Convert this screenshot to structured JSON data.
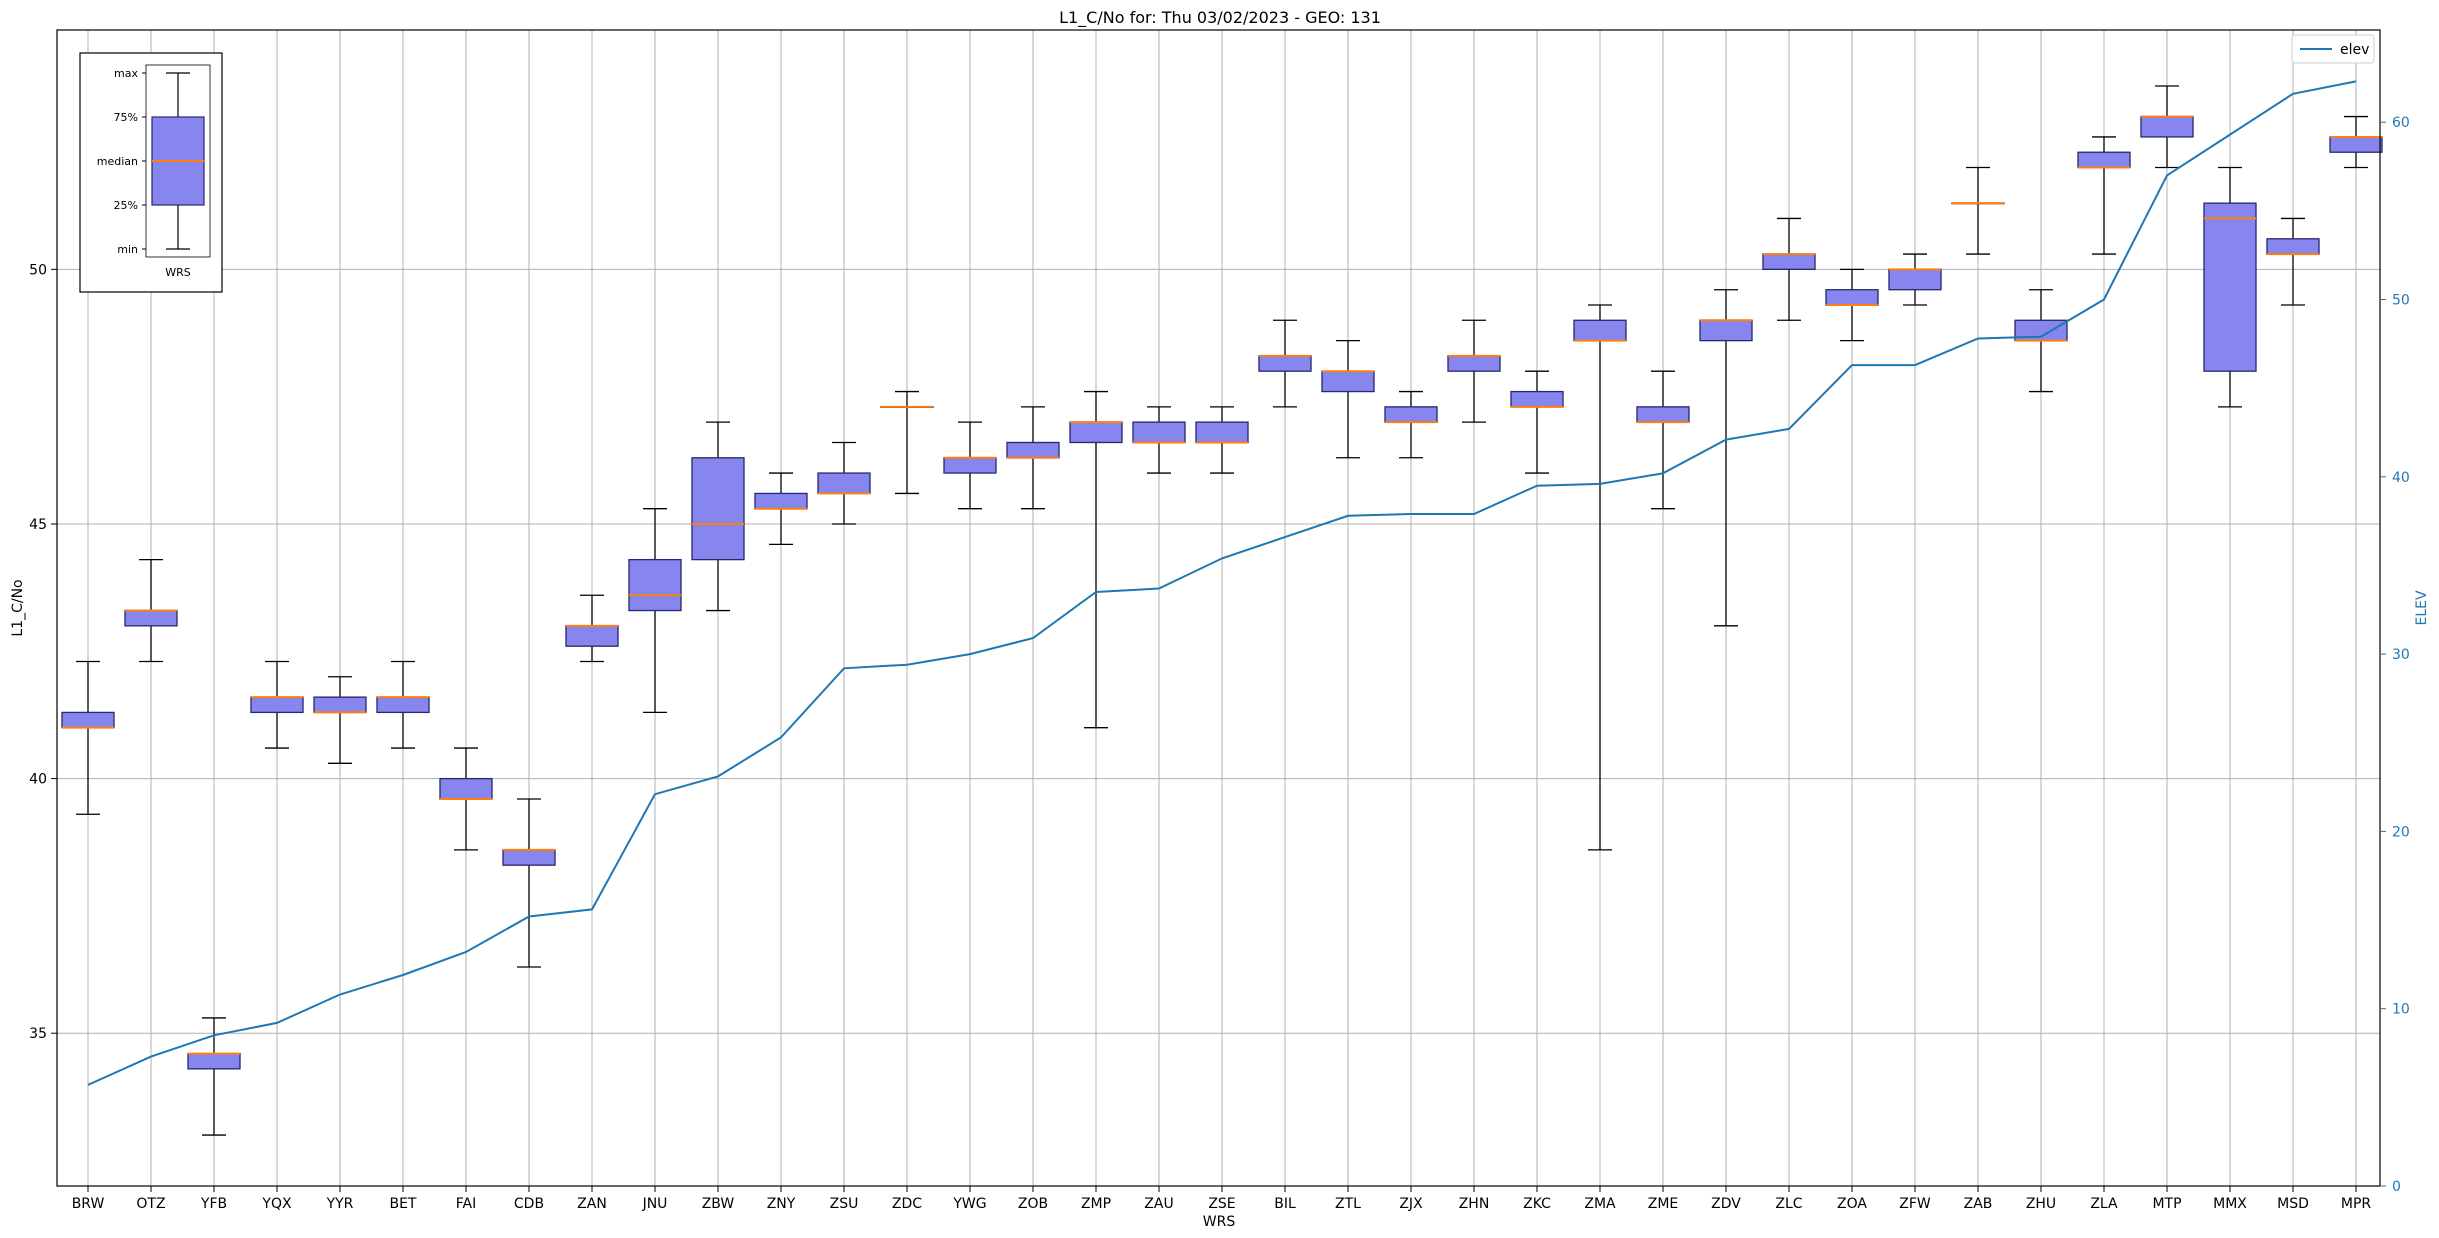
{
  "chart_data": {
    "type": "box",
    "title": "L1_C/No for: Thu 03/02/2023 - GEO: 131",
    "xlabel": "WRS",
    "ylabel": "L1_C/No",
    "y2label": "ELEV",
    "ylim": [
      32.0,
      54.7
    ],
    "y2lim": [
      0,
      65.2
    ],
    "yticks": [
      35,
      40,
      45,
      50
    ],
    "y2ticks": [
      0,
      10,
      20,
      30,
      40,
      50,
      60
    ],
    "grid": true,
    "legend": {
      "position": "top-right",
      "entries": [
        "elev"
      ]
    },
    "colors": {
      "box_fill": "#8686ee",
      "box_edge": "#27276e",
      "median": "#ff7f0e",
      "elev_line": "#1f77b4",
      "grid": "#b0b0b0"
    },
    "categories": [
      "BRW",
      "OTZ",
      "YFB",
      "YQX",
      "YYR",
      "BET",
      "FAI",
      "CDB",
      "ZAN",
      "JNU",
      "ZBW",
      "ZNY",
      "ZSU",
      "ZDC",
      "YWG",
      "ZOB",
      "ZMP",
      "ZAU",
      "ZSE",
      "BIL",
      "ZTL",
      "ZJX",
      "ZHN",
      "ZKC",
      "ZMA",
      "ZME",
      "ZDV",
      "ZLC",
      "ZOA",
      "ZFW",
      "ZAB",
      "ZHU",
      "ZLA",
      "MTP",
      "MMX",
      "MSD",
      "MPR"
    ],
    "boxes": [
      {
        "min": 39.3,
        "q1": 41.0,
        "median": 41.0,
        "q3": 41.3,
        "max": 42.3
      },
      {
        "min": 42.3,
        "q1": 43.0,
        "median": 43.3,
        "q3": 43.3,
        "max": 44.3
      },
      {
        "min": 33.0,
        "q1": 34.3,
        "median": 34.6,
        "q3": 34.6,
        "max": 35.3
      },
      {
        "min": 40.6,
        "q1": 41.3,
        "median": 41.6,
        "q3": 41.6,
        "max": 42.3
      },
      {
        "min": 40.3,
        "q1": 41.3,
        "median": 41.3,
        "q3": 41.6,
        "max": 42.0
      },
      {
        "min": 40.6,
        "q1": 41.3,
        "median": 41.6,
        "q3": 41.6,
        "max": 42.3
      },
      {
        "min": 38.6,
        "q1": 39.6,
        "median": 39.6,
        "q3": 40.0,
        "max": 40.6
      },
      {
        "min": 36.3,
        "q1": 38.3,
        "median": 38.6,
        "q3": 38.6,
        "max": 39.6
      },
      {
        "min": 42.3,
        "q1": 42.6,
        "median": 43.0,
        "q3": 43.0,
        "max": 43.6
      },
      {
        "min": 41.3,
        "q1": 43.3,
        "median": 43.6,
        "q3": 44.3,
        "max": 45.3
      },
      {
        "min": 43.3,
        "q1": 44.3,
        "median": 45.0,
        "q3": 46.3,
        "max": 47.0
      },
      {
        "min": 44.6,
        "q1": 45.3,
        "median": 45.3,
        "q3": 45.6,
        "max": 46.0
      },
      {
        "min": 45.0,
        "q1": 45.6,
        "median": 45.6,
        "q3": 46.0,
        "max": 46.6
      },
      {
        "min": 45.6,
        "q1": 47.3,
        "median": 47.3,
        "q3": 47.3,
        "max": 47.6
      },
      {
        "min": 45.3,
        "q1": 46.0,
        "median": 46.3,
        "q3": 46.3,
        "max": 47.0
      },
      {
        "min": 45.3,
        "q1": 46.3,
        "median": 46.3,
        "q3": 46.6,
        "max": 47.3
      },
      {
        "min": 41.0,
        "q1": 46.6,
        "median": 47.0,
        "q3": 47.0,
        "max": 47.6
      },
      {
        "min": 46.0,
        "q1": 46.6,
        "median": 46.6,
        "q3": 47.0,
        "max": 47.3
      },
      {
        "min": 46.0,
        "q1": 46.6,
        "median": 46.6,
        "q3": 47.0,
        "max": 47.3
      },
      {
        "min": 47.3,
        "q1": 48.0,
        "median": 48.3,
        "q3": 48.3,
        "max": 49.0
      },
      {
        "min": 46.3,
        "q1": 47.6,
        "median": 48.0,
        "q3": 48.0,
        "max": 48.6
      },
      {
        "min": 46.3,
        "q1": 47.0,
        "median": 47.0,
        "q3": 47.3,
        "max": 47.6
      },
      {
        "min": 47.0,
        "q1": 48.0,
        "median": 48.3,
        "q3": 48.3,
        "max": 49.0
      },
      {
        "min": 46.0,
        "q1": 47.3,
        "median": 47.3,
        "q3": 47.6,
        "max": 48.0
      },
      {
        "min": 38.6,
        "q1": 48.6,
        "median": 48.6,
        "q3": 49.0,
        "max": 49.3
      },
      {
        "min": 45.3,
        "q1": 47.0,
        "median": 47.0,
        "q3": 47.3,
        "max": 48.0
      },
      {
        "min": 43.0,
        "q1": 48.6,
        "median": 49.0,
        "q3": 49.0,
        "max": 49.6
      },
      {
        "min": 49.0,
        "q1": 50.0,
        "median": 50.3,
        "q3": 50.3,
        "max": 51.0
      },
      {
        "min": 48.6,
        "q1": 49.3,
        "median": 49.3,
        "q3": 49.6,
        "max": 50.0
      },
      {
        "min": 49.3,
        "q1": 49.6,
        "median": 50.0,
        "q3": 50.0,
        "max": 50.3
      },
      {
        "min": 50.3,
        "q1": 51.3,
        "median": 51.3,
        "q3": 51.3,
        "max": 52.0
      },
      {
        "min": 47.6,
        "q1": 48.6,
        "median": 48.6,
        "q3": 49.0,
        "max": 49.6
      },
      {
        "min": 50.3,
        "q1": 52.0,
        "median": 52.0,
        "q3": 52.3,
        "max": 52.6
      },
      {
        "min": 52.0,
        "q1": 52.6,
        "median": 53.0,
        "q3": 53.0,
        "max": 53.6
      },
      {
        "min": 47.3,
        "q1": 48.0,
        "median": 51.0,
        "q3": 51.3,
        "max": 52.0
      },
      {
        "min": 49.3,
        "q1": 50.3,
        "median": 50.3,
        "q3": 50.6,
        "max": 51.0
      },
      {
        "min": 52.0,
        "q1": 52.3,
        "median": 52.6,
        "q3": 52.6,
        "max": 53.0
      }
    ],
    "series": [
      {
        "name": "elev",
        "axis": "right",
        "values": [
          5.7,
          7.3,
          8.5,
          9.2,
          10.8,
          11.9,
          13.2,
          15.2,
          15.6,
          22.1,
          23.1,
          25.3,
          29.2,
          29.4,
          30.0,
          30.9,
          33.5,
          33.7,
          35.4,
          36.6,
          37.8,
          37.9,
          37.9,
          39.5,
          39.6,
          40.2,
          42.1,
          42.7,
          46.3,
          46.3,
          47.8,
          47.9,
          50.0,
          57.0,
          59.3,
          61.6,
          62.3
        ]
      }
    ]
  },
  "legend_inset": {
    "labels": [
      "max",
      "75%",
      "median",
      "25%",
      "min"
    ],
    "xlabel": "WRS"
  }
}
